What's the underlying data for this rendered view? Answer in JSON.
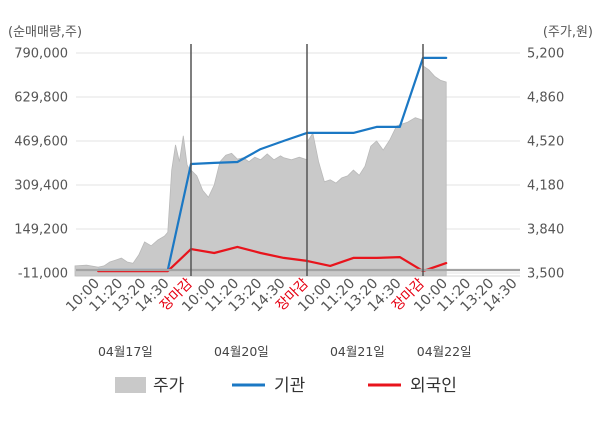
{
  "chart_data": {
    "type": "line",
    "title": "",
    "y_left": {
      "label": "(순매매량,주)",
      "ticks": [
        "790,000",
        "629,800",
        "469,600",
        "309,400",
        "149,200",
        "-11,000"
      ],
      "ylim": [
        -11000,
        790000
      ]
    },
    "y_right": {
      "label": "(주가,원)",
      "ticks": [
        "5,200",
        "4,860",
        "4,520",
        "4,180",
        "3,840",
        "3,500"
      ],
      "ylim": [
        3500,
        5200
      ]
    },
    "x_axis": {
      "days": [
        "04월17일",
        "04월20일",
        "04월21일",
        "04월22일"
      ],
      "ticks": [
        [
          "10:00",
          "11:20",
          "13:20",
          "14:30",
          "장마감"
        ],
        [
          "10:00",
          "11:20",
          "13:20",
          "14:30",
          "장마감"
        ],
        [
          "10:00",
          "11:20",
          "13:20",
          "14:30",
          "장마감"
        ],
        [
          "10:00",
          "11:20",
          "13:20",
          "14:30"
        ]
      ],
      "close_label": "장마감"
    },
    "grid": true,
    "legend_position": "bottom",
    "series": [
      {
        "name": "주가",
        "kind": "area",
        "axis": "right",
        "color": "#c9c9c9",
        "data": [
          {
            "day": "04월17일",
            "points": [
              [
                "09:00",
                3555
              ],
              [
                "09:30",
                3560
              ],
              [
                "10:00",
                3545
              ],
              [
                "10:20",
                3555
              ],
              [
                "10:40",
                3585
              ],
              [
                "11:00",
                3600
              ],
              [
                "11:20",
                3615
              ],
              [
                "11:50",
                3585
              ],
              [
                "12:20",
                3575
              ],
              [
                "12:50",
                3640
              ],
              [
                "13:20",
                3740
              ],
              [
                "13:40",
                3710
              ],
              [
                "14:00",
                3755
              ],
              [
                "14:20",
                3785
              ],
              [
                "14:30",
                3815
              ],
              [
                "14:40",
                4295
              ],
              [
                "14:50",
                4490
              ],
              [
                "15:00",
                4360
              ],
              [
                "15:10",
                4560
              ],
              [
                "15:20",
                4335
              ],
              [
                "장마감",
                4280
              ]
            ]
          },
          {
            "day": "04월20일",
            "points": [
              [
                "09:00",
                4295
              ],
              [
                "09:15",
                4250
              ],
              [
                "09:30",
                4140
              ],
              [
                "09:45",
                4085
              ],
              [
                "10:00",
                4180
              ],
              [
                "10:20",
                4360
              ],
              [
                "10:40",
                4410
              ],
              [
                "11:00",
                4425
              ],
              [
                "11:20",
                4380
              ],
              [
                "11:50",
                4390
              ],
              [
                "12:20",
                4360
              ],
              [
                "12:50",
                4395
              ],
              [
                "13:20",
                4375
              ],
              [
                "13:40",
                4420
              ],
              [
                "14:00",
                4375
              ],
              [
                "14:20",
                4405
              ],
              [
                "14:30",
                4390
              ],
              [
                "14:50",
                4375
              ],
              [
                "15:10",
                4395
              ],
              [
                "장마감",
                4375
              ]
            ]
          },
          {
            "day": "04월21일",
            "points": [
              [
                "09:00",
                4510
              ],
              [
                "09:15",
                4580
              ],
              [
                "09:30",
                4360
              ],
              [
                "09:45",
                4205
              ],
              [
                "10:00",
                4220
              ],
              [
                "10:20",
                4195
              ],
              [
                "10:40",
                4235
              ],
              [
                "11:00",
                4250
              ],
              [
                "11:20",
                4295
              ],
              [
                "11:50",
                4255
              ],
              [
                "12:20",
                4325
              ],
              [
                "12:50",
                4480
              ],
              [
                "13:20",
                4520
              ],
              [
                "13:40",
                4450
              ],
              [
                "14:00",
                4530
              ],
              [
                "14:20",
                4635
              ],
              [
                "14:30",
                4645
              ],
              [
                "14:50",
                4665
              ],
              [
                "15:10",
                4700
              ],
              [
                "장마감",
                4680
              ]
            ]
          },
          {
            "day": "04월22일",
            "points": [
              [
                "09:00",
                5100
              ],
              [
                "09:15",
                5070
              ],
              [
                "09:30",
                5020
              ],
              [
                "09:45",
                4990
              ],
              [
                "10:00",
                4975
              ]
            ]
          }
        ]
      },
      {
        "name": "기관",
        "kind": "line",
        "axis": "left",
        "color": "#1b78c4",
        "data": [
          {
            "day": "04월17일",
            "points": [
              [
                "10:00",
                0
              ],
              [
                "11:20",
                0
              ],
              [
                "13:20",
                0
              ],
              [
                "14:30",
                0
              ],
              [
                "장마감",
                386000
              ]
            ]
          },
          {
            "day": "04월20일",
            "points": [
              [
                "10:00",
                390000
              ],
              [
                "11:20",
                393000
              ],
              [
                "13:20",
                440000
              ],
              [
                "14:30",
                470000
              ],
              [
                "장마감",
                499000
              ]
            ]
          },
          {
            "day": "04월21일",
            "points": [
              [
                "10:00",
                499000
              ],
              [
                "11:20",
                499000
              ],
              [
                "13:20",
                521000
              ],
              [
                "14:30",
                521000
              ],
              [
                "장마감",
                772000
              ]
            ]
          },
          {
            "day": "04월22일",
            "points": [
              [
                "10:00",
                772000
              ]
            ]
          }
        ]
      },
      {
        "name": "외국인",
        "kind": "line",
        "axis": "left",
        "color": "#e8141c",
        "data": [
          {
            "day": "04월17일",
            "points": [
              [
                "10:00",
                -4000
              ],
              [
                "11:20",
                -4000
              ],
              [
                "13:20",
                -4000
              ],
              [
                "14:30",
                -4000
              ],
              [
                "장마감",
                76000
              ]
            ]
          },
          {
            "day": "04월20일",
            "points": [
              [
                "10:00",
                62000
              ],
              [
                "11:20",
                84000
              ],
              [
                "13:20",
                62000
              ],
              [
                "14:30",
                44000
              ],
              [
                "장마감",
                33000
              ]
            ]
          },
          {
            "day": "04월21일",
            "points": [
              [
                "10:00",
                15000
              ],
              [
                "11:20",
                44000
              ],
              [
                "13:20",
                44000
              ],
              [
                "14:30",
                47000
              ],
              [
                "장마감",
                -4000
              ]
            ]
          },
          {
            "day": "04월22일",
            "points": [
              [
                "10:00",
                25000
              ]
            ]
          }
        ]
      }
    ]
  }
}
